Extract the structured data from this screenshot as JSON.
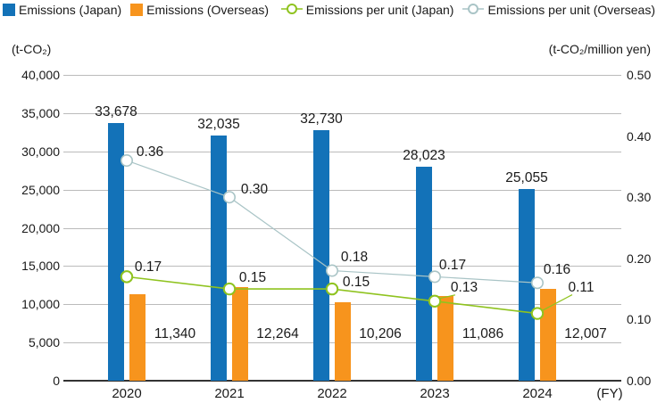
{
  "legend": {
    "items": [
      {
        "key": "bar-japan",
        "label": "Emissions (Japan)",
        "type": "square",
        "color": "#1372b8"
      },
      {
        "key": "bar-overseas",
        "label": "Emissions (Overseas)",
        "type": "square",
        "color": "#f7941d"
      },
      {
        "key": "line-japan",
        "label": "Emissions per unit (Japan)",
        "type": "line-marker",
        "color": "#8fc31f"
      },
      {
        "key": "line-overseas",
        "label": "Emissions per unit (Overseas)",
        "type": "line-marker",
        "color": "#a9c4c6"
      }
    ]
  },
  "chart_data": {
    "type": "combo-bar-line",
    "categories": [
      "2020",
      "2021",
      "2022",
      "2023",
      "2024"
    ],
    "x_suffix_label": "(FY)",
    "left_axis": {
      "unit": "(t-CO₂)",
      "min": 0,
      "max": 40000,
      "gridline_step": 5000,
      "tick_labels": [
        "40,000",
        "35,000",
        "30,000",
        "25,000",
        "20,000",
        "15,000",
        "10,000",
        "5,000",
        "0"
      ]
    },
    "right_axis": {
      "unit": "(t-CO₂/million yen)",
      "min": 0,
      "max": 0.5,
      "tick_step": 0.1,
      "tick_labels": [
        "0.50",
        "0.40",
        "0.30",
        "0.20",
        "0.10",
        "0.00"
      ]
    },
    "series": [
      {
        "key": "bar-japan",
        "name": "Emissions (Japan)",
        "type": "bar",
        "axis": "left",
        "color": "#1372b8",
        "values": [
          33678,
          32035,
          32730,
          28023,
          25055
        ],
        "value_labels": [
          "33,678",
          "32,035",
          "32,730",
          "28,023",
          "25,055"
        ]
      },
      {
        "key": "bar-overseas",
        "name": "Emissions (Overseas)",
        "type": "bar",
        "axis": "left",
        "color": "#f7941d",
        "values": [
          11340,
          12264,
          10206,
          11086,
          12007
        ],
        "value_labels": [
          "11,340",
          "12,264",
          "10,206",
          "11,086",
          "12,007"
        ]
      },
      {
        "key": "line-japan",
        "name": "Emissions per unit (Japan)",
        "type": "line",
        "axis": "right",
        "color": "#8fc31f",
        "values": [
          0.17,
          0.15,
          0.15,
          0.13,
          0.11
        ],
        "value_labels": [
          "0.17",
          "0.15",
          "0.15",
          "0.13",
          "0.11"
        ]
      },
      {
        "key": "line-overseas",
        "name": "Emissions per unit (Overseas)",
        "type": "line",
        "axis": "right",
        "color": "#a9c4c6",
        "values": [
          0.36,
          0.3,
          0.18,
          0.17,
          0.16
        ],
        "value_labels": [
          "0.36",
          "0.30",
          "0.18",
          "0.17",
          "0.16"
        ]
      }
    ],
    "grid": true,
    "legend_position": "top"
  }
}
